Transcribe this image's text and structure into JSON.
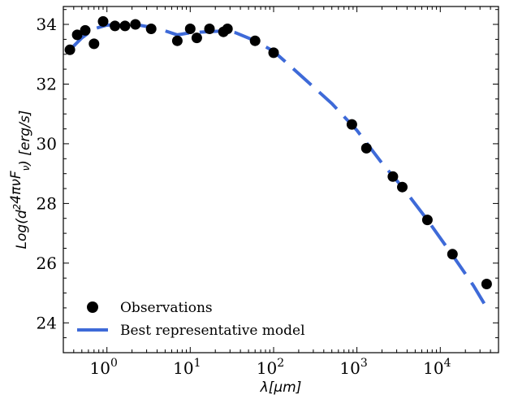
{
  "chart_data": {
    "type": "scatter",
    "xlabel": "λ[μm]",
    "ylabel": "Log(d²4πνF_ν) [erg/s]",
    "xscale": "log",
    "xlim": [
      0.3,
      50000
    ],
    "ylim": [
      23,
      34.6
    ],
    "x_ticks": [
      {
        "value": 1,
        "base": "10",
        "exp": "0"
      },
      {
        "value": 10,
        "base": "10",
        "exp": "1"
      },
      {
        "value": 100,
        "base": "10",
        "exp": "2"
      },
      {
        "value": 1000,
        "base": "10",
        "exp": "3"
      },
      {
        "value": 10000,
        "base": "10",
        "exp": "4"
      }
    ],
    "y_ticks": [
      24,
      26,
      28,
      30,
      32,
      34
    ],
    "grid": false,
    "legend_position": "bottom-left",
    "series": [
      {
        "name": "Observations",
        "kind": "points",
        "color": "#000000",
        "points": [
          [
            0.36,
            33.15
          ],
          [
            0.44,
            33.65
          ],
          [
            0.55,
            33.8
          ],
          [
            0.7,
            33.35
          ],
          [
            0.9,
            34.1
          ],
          [
            1.25,
            33.95
          ],
          [
            1.65,
            33.95
          ],
          [
            2.2,
            34.0
          ],
          [
            3.4,
            33.85
          ],
          [
            7.0,
            33.45
          ],
          [
            10.0,
            33.85
          ],
          [
            12.0,
            33.55
          ],
          [
            17.0,
            33.85
          ],
          [
            25.0,
            33.75
          ],
          [
            28.0,
            33.85
          ],
          [
            60.0,
            33.45
          ],
          [
            100.0,
            33.05
          ],
          [
            870.0,
            30.65
          ],
          [
            1300.0,
            29.85
          ],
          [
            2700.0,
            28.9
          ],
          [
            3500.0,
            28.55
          ],
          [
            7000.0,
            27.45
          ],
          [
            14000.0,
            26.3
          ],
          [
            36000.0,
            25.3
          ]
        ]
      },
      {
        "name": "Best representative model",
        "kind": "line",
        "color": "#3e6ad8",
        "style": "dashed",
        "points": [
          [
            0.36,
            33.15
          ],
          [
            0.5,
            33.55
          ],
          [
            0.7,
            33.85
          ],
          [
            1.0,
            33.98
          ],
          [
            1.5,
            33.97
          ],
          [
            2.5,
            33.97
          ],
          [
            4.0,
            33.87
          ],
          [
            7.0,
            33.65
          ],
          [
            10.0,
            33.72
          ],
          [
            15.0,
            33.75
          ],
          [
            25.0,
            33.78
          ],
          [
            35.0,
            33.72
          ],
          [
            60.0,
            33.45
          ],
          [
            100.0,
            33.1
          ],
          [
            200.0,
            32.35
          ],
          [
            500.0,
            31.35
          ],
          [
            1000.0,
            30.45
          ],
          [
            2000.0,
            29.35
          ],
          [
            3500.0,
            28.55
          ],
          [
            7000.0,
            27.45
          ],
          [
            15000.0,
            26.15
          ],
          [
            25000.0,
            25.25
          ],
          [
            38000.0,
            24.4
          ]
        ]
      }
    ]
  }
}
